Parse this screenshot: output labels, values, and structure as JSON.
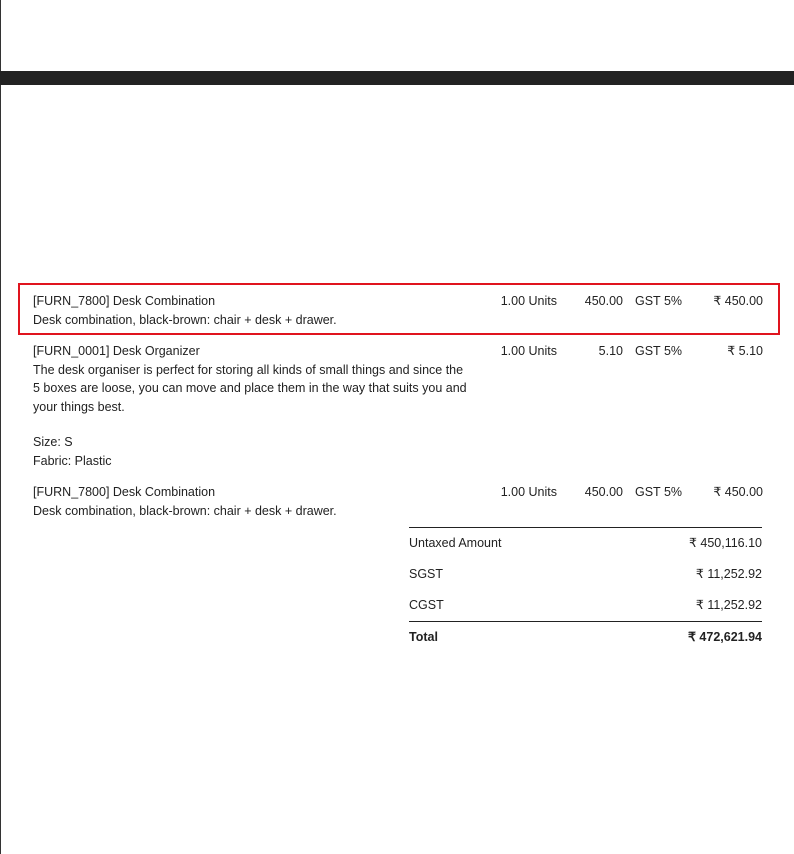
{
  "lines": [
    {
      "name": "[FURN_7800] Desk Combination",
      "description": "Desk combination, black-brown: chair + desk + drawer.",
      "quantity": "1.00 Units",
      "unit_price": "450.00",
      "taxes": "GST 5%",
      "subtotal": "₹ 450.00",
      "highlighted": true
    },
    {
      "name": "[FURN_0001] Desk Organizer",
      "description": "The desk organiser is perfect for storing all kinds of small things and since the 5 boxes are loose, you can move and place them in the way that suits you and your things best.",
      "attributes": [
        "Size: S",
        "Fabric: Plastic"
      ],
      "quantity": "1.00 Units",
      "unit_price": "5.10",
      "taxes": "GST 5%",
      "subtotal": "₹ 5.10"
    },
    {
      "name": "[FURN_7800] Desk Combination",
      "description": "Desk combination, black-brown: chair + desk + drawer.",
      "quantity": "1.00 Units",
      "unit_price": "450.00",
      "taxes": "GST 5%",
      "subtotal": "₹ 450.00"
    }
  ],
  "totals": {
    "untaxed_label": "Untaxed Amount",
    "untaxed_value": "₹ 450,116.10",
    "sgst_label": "SGST",
    "sgst_value": "₹ 11,252.92",
    "cgst_label": "CGST",
    "cgst_value": "₹ 11,252.92",
    "total_label": "Total",
    "total_value": "₹ 472,621.94"
  },
  "colors": {
    "highlight": "#e0141e",
    "header_bar": "#222222"
  }
}
